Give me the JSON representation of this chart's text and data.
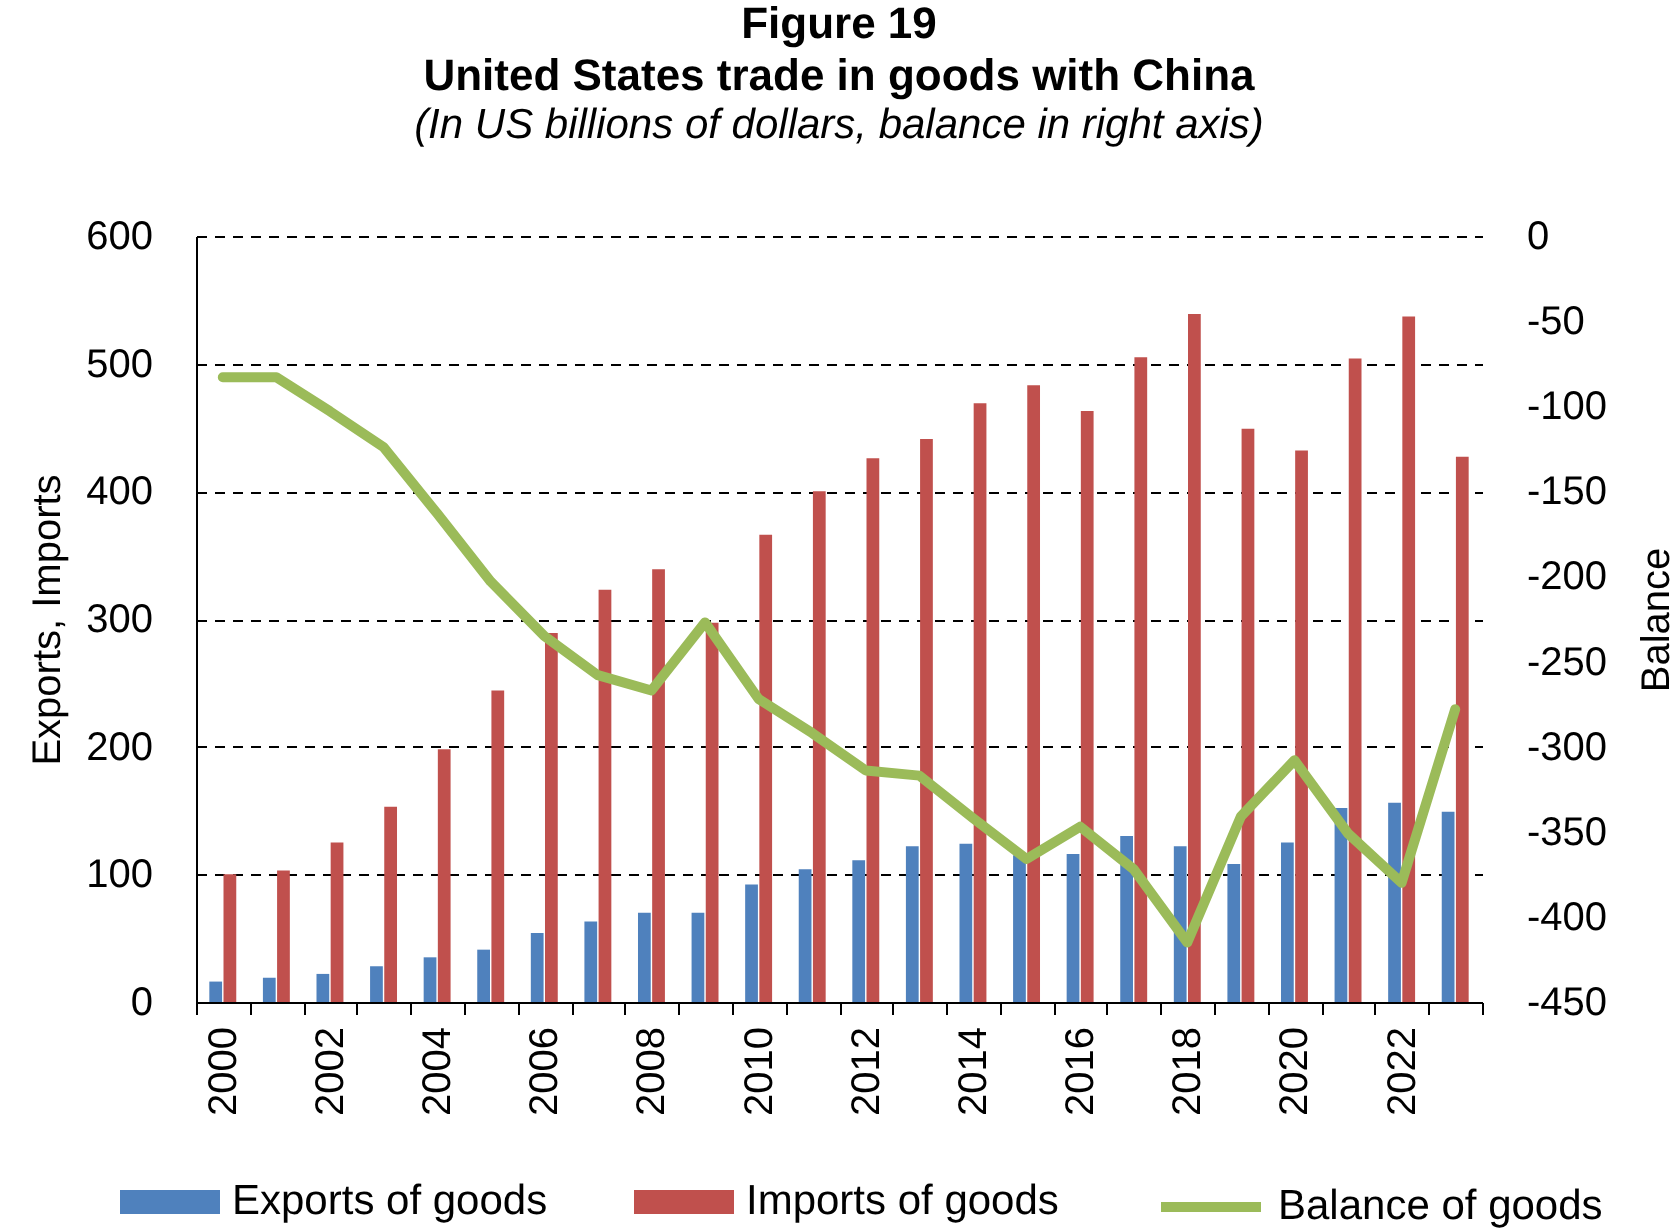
{
  "chart_data": {
    "type": "bar",
    "title": "Figure 19\nUnited States trade in goods with China",
    "subtitle": "(In US billions of dollars, balance in right axis)",
    "ylabel": "Exports, Imports",
    "y2label": "Balance",
    "categories": [
      "2000",
      null,
      "2002",
      null,
      "2004",
      null,
      "2006",
      null,
      "2008",
      null,
      "2010",
      null,
      "2012",
      null,
      "2014",
      null,
      "2016",
      null,
      "2018",
      null,
      "2020",
      null,
      "2022",
      null
    ],
    "series": [
      {
        "name": "Exports of goods",
        "color": "#4f81bd",
        "values": [
          16,
          19,
          22,
          28,
          35,
          41,
          54,
          63,
          70,
          70,
          92,
          104,
          111,
          122,
          124,
          115,
          116,
          130,
          122,
          108,
          125,
          152,
          156,
          149
        ]
      },
      {
        "name": "Imports of goods",
        "color": "#c0504d",
        "values": [
          100,
          103,
          125,
          153,
          198,
          244,
          289,
          323,
          339,
          297,
          366,
          400,
          426,
          441,
          469,
          483,
          463,
          505,
          539,
          449,
          432,
          504,
          537,
          427
        ]
      },
      {
        "name": "Balance of goods",
        "type": "line",
        "axis": "y2",
        "color": "#9bbb59",
        "values": [
          -83,
          -83,
          -103,
          -124,
          -163,
          -203,
          -235,
          -258,
          -267,
          -227,
          -272,
          -292,
          -314,
          -317,
          -342,
          -366,
          -347,
          -372,
          -415,
          -341,
          -308,
          -351,
          -380,
          -278
        ]
      }
    ],
    "ylim": [
      0,
      600
    ],
    "yticks": [
      0,
      100,
      200,
      300,
      400,
      500,
      600
    ],
    "y2lim": [
      -450,
      0
    ],
    "y2ticks": [
      0,
      -50,
      -100,
      -150,
      -200,
      -250,
      -300,
      -350,
      -400,
      -450
    ],
    "grid": "y",
    "legend": "bottom",
    "line_style": "solid"
  }
}
